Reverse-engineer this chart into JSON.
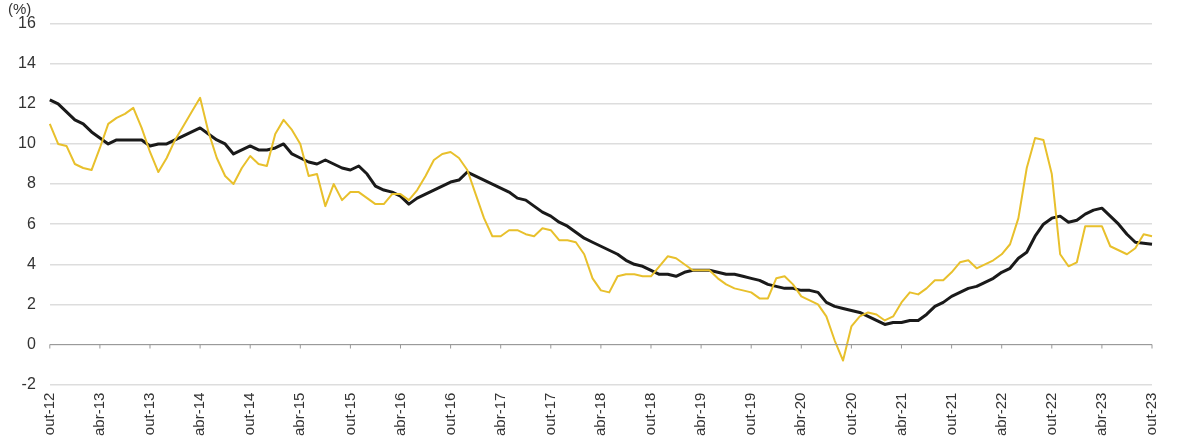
{
  "chart_data": {
    "type": "line",
    "ylabel": "(%)",
    "categories": [
      "out-12",
      null,
      null,
      null,
      null,
      null,
      "abr-13",
      null,
      null,
      null,
      null,
      null,
      "out-13",
      null,
      null,
      null,
      null,
      null,
      "abr-14",
      null,
      null,
      null,
      null,
      null,
      "out-14",
      null,
      null,
      null,
      null,
      null,
      "abr-15",
      null,
      null,
      null,
      null,
      null,
      "out-15",
      null,
      null,
      null,
      null,
      null,
      "abr-16",
      null,
      null,
      null,
      null,
      null,
      "out-16",
      null,
      null,
      null,
      null,
      null,
      "abr-17",
      null,
      null,
      null,
      null,
      null,
      "out-17",
      null,
      null,
      null,
      null,
      null,
      "abr-18",
      null,
      null,
      null,
      null,
      null,
      "out-18",
      null,
      null,
      null,
      null,
      null,
      "abr-19",
      null,
      null,
      null,
      null,
      null,
      "out-19",
      null,
      null,
      null,
      null,
      null,
      "abr-20",
      null,
      null,
      null,
      null,
      null,
      "out-20",
      null,
      null,
      null,
      null,
      null,
      "abr-21",
      null,
      null,
      null,
      null,
      null,
      "out-21",
      null,
      null,
      null,
      null,
      null,
      "abr-22",
      null,
      null,
      null,
      null,
      null,
      "out-22",
      null,
      null,
      null,
      null,
      null,
      "abr-23",
      null,
      null,
      null,
      null,
      null,
      "out-23"
    ],
    "series": [
      {
        "color": "#e8c02c",
        "values": [
          11.0,
          10.0,
          9.9,
          9.0,
          8.8,
          8.7,
          9.8,
          11.0,
          11.3,
          11.5,
          11.8,
          10.8,
          9.6,
          8.6,
          9.3,
          10.2,
          10.9,
          11.6,
          12.3,
          10.6,
          9.3,
          8.4,
          8.0,
          8.8,
          9.4,
          9.0,
          8.9,
          10.5,
          11.2,
          10.7,
          10.0,
          8.4,
          8.5,
          6.9,
          8.0,
          7.2,
          7.6,
          7.6,
          7.3,
          7.0,
          7.0,
          7.5,
          7.5,
          7.2,
          7.7,
          8.4,
          9.2,
          9.5,
          9.6,
          9.3,
          8.7,
          7.5,
          6.3,
          5.4,
          5.4,
          5.7,
          5.7,
          5.5,
          5.4,
          5.8,
          5.7,
          5.2,
          5.2,
          5.1,
          4.5,
          3.3,
          2.7,
          2.6,
          3.4,
          3.5,
          3.5,
          3.4,
          3.4,
          3.9,
          4.4,
          4.3,
          4.0,
          3.7,
          3.7,
          3.7,
          3.3,
          3.0,
          2.8,
          2.7,
          2.6,
          2.3,
          2.3,
          3.3,
          3.4,
          3.0,
          2.4,
          2.2,
          2.0,
          1.4,
          0.2,
          -0.8,
          0.9,
          1.4,
          1.6,
          1.5,
          1.2,
          1.4,
          2.1,
          2.6,
          2.5,
          2.8,
          3.2,
          3.2,
          3.6,
          4.1,
          4.2,
          3.8,
          4.0,
          4.2,
          4.5,
          5.0,
          6.3,
          8.8,
          10.3,
          10.2,
          8.5,
          4.5,
          3.9,
          4.1,
          5.9,
          5.9,
          5.9,
          4.9,
          4.7,
          4.5,
          4.8,
          5.5,
          5.4
        ]
      },
      {
        "color": "#1a1a1a",
        "values": [
          12.2,
          12.0,
          11.6,
          11.2,
          11.0,
          10.6,
          10.3,
          10.0,
          10.2,
          10.2,
          10.2,
          10.2,
          9.9,
          10.0,
          10.0,
          10.2,
          10.4,
          10.6,
          10.8,
          10.5,
          10.2,
          10.0,
          9.5,
          9.7,
          9.9,
          9.7,
          9.7,
          9.8,
          10.0,
          9.5,
          9.3,
          9.1,
          9.0,
          9.2,
          9.0,
          8.8,
          8.7,
          8.9,
          8.5,
          7.9,
          7.7,
          7.6,
          7.4,
          7.0,
          7.3,
          7.5,
          7.7,
          7.9,
          8.1,
          8.2,
          8.6,
          8.4,
          8.2,
          8.0,
          7.8,
          7.6,
          7.3,
          7.2,
          6.9,
          6.6,
          6.4,
          6.1,
          5.9,
          5.6,
          5.3,
          5.1,
          4.9,
          4.7,
          4.5,
          4.2,
          4.0,
          3.9,
          3.7,
          3.5,
          3.5,
          3.4,
          3.6,
          3.7,
          3.7,
          3.7,
          3.6,
          3.5,
          3.5,
          3.4,
          3.3,
          3.2,
          3.0,
          2.9,
          2.8,
          2.8,
          2.7,
          2.7,
          2.6,
          2.1,
          1.9,
          1.8,
          1.7,
          1.6,
          1.4,
          1.2,
          1.0,
          1.1,
          1.1,
          1.2,
          1.2,
          1.5,
          1.9,
          2.1,
          2.4,
          2.6,
          2.8,
          2.9,
          3.1,
          3.3,
          3.6,
          3.8,
          4.3,
          4.6,
          5.4,
          6.0,
          6.3,
          6.4,
          6.1,
          6.2,
          6.5,
          6.7,
          6.8,
          6.4,
          6.0,
          5.5,
          5.1,
          5.05,
          5.0
        ]
      }
    ],
    "ylim": [
      -2,
      16
    ],
    "yticks": [
      -2,
      0,
      2,
      4,
      6,
      8,
      10,
      12,
      14,
      16
    ],
    "grid": "y",
    "legend": false,
    "marker": "none",
    "line_style": "solid"
  }
}
